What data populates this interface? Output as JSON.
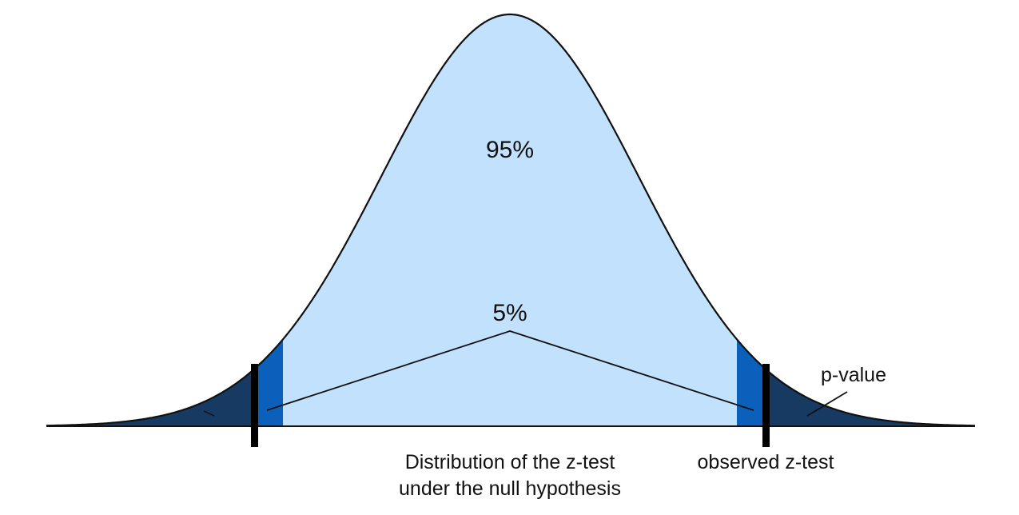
{
  "labels": {
    "center_area": "95%",
    "tails_area": "5%",
    "p_value": "p-value",
    "distribution_line1": "Distribution of the z-test",
    "distribution_line2": "under the null hypothesis",
    "observed": "observed z-test"
  },
  "colors": {
    "center_fill": "#c2e1fd",
    "rejection_fill": "#0a60bb",
    "pvalue_fill": "#173a63",
    "curve_stroke": "#111111",
    "marker": "#000000"
  }
}
